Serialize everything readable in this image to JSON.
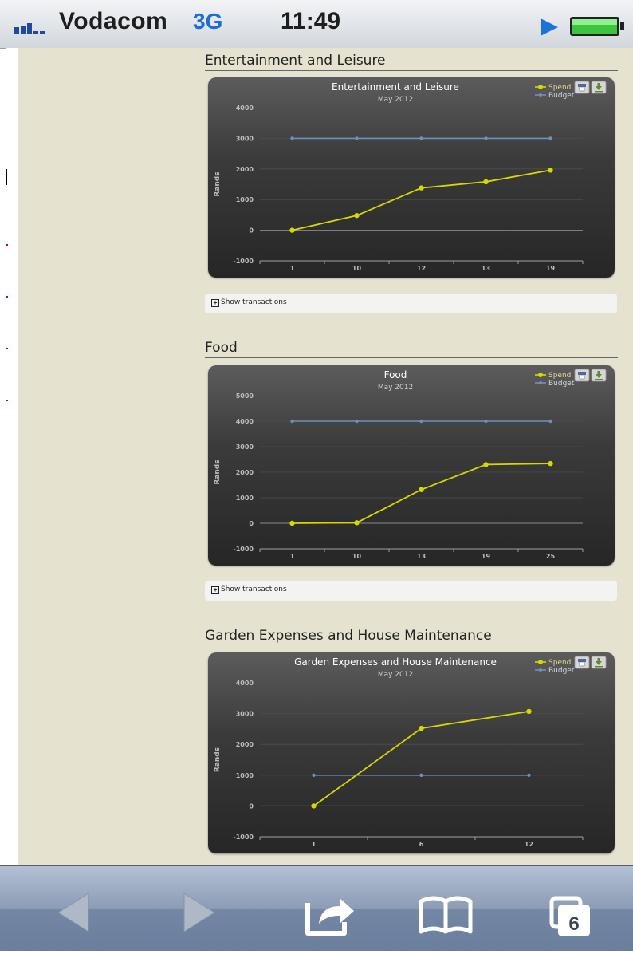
{
  "status_bar": {
    "carrier": "Vodacom",
    "network": "3G",
    "time": "11:49"
  },
  "page": {
    "sections": [
      {
        "title": "Entertainment and Leisure",
        "chart_data": {
          "type": "line",
          "title": "Entertainment and Leisure",
          "subtitle": "May 2012",
          "ylabel": "Rands",
          "categories": [
            "1",
            "10",
            "12",
            "13",
            "19"
          ],
          "yticks": [
            -1000,
            0,
            1000,
            2000,
            3000,
            4000
          ],
          "ylim": [
            -1000,
            4000
          ],
          "grid": true,
          "legend_position": "top-right",
          "series": [
            {
              "name": "Spend",
              "color": "#d8d800",
              "values": [
                0,
                480,
                1380,
                1580,
                1960
              ]
            },
            {
              "name": "Budget",
              "color": "#6f8fbf",
              "values": [
                3000,
                3000,
                3000,
                3000,
                3000
              ]
            }
          ]
        },
        "show_transactions": "Show transactions"
      },
      {
        "title": "Food",
        "chart_data": {
          "type": "line",
          "title": "Food",
          "subtitle": "May 2012",
          "ylabel": "Rands",
          "categories": [
            "1",
            "10",
            "13",
            "19",
            "25"
          ],
          "yticks": [
            -1000,
            0,
            1000,
            2000,
            3000,
            4000,
            5000
          ],
          "ylim": [
            -1000,
            5000
          ],
          "grid": true,
          "legend_position": "top-right",
          "series": [
            {
              "name": "Spend",
              "color": "#d8d800",
              "values": [
                0,
                20,
                1320,
                2300,
                2340
              ]
            },
            {
              "name": "Budget",
              "color": "#6f8fbf",
              "values": [
                4000,
                4000,
                4000,
                4000,
                4000
              ]
            }
          ]
        },
        "show_transactions": "Show transactions"
      },
      {
        "title": "Garden Expenses and House Maintenance",
        "chart_data": {
          "type": "line",
          "title": "Garden Expenses and House Maintenance",
          "subtitle": "May 2012",
          "ylabel": "Rands",
          "categories": [
            "1",
            "6",
            "12"
          ],
          "yticks": [
            -1000,
            0,
            1000,
            2000,
            3000,
            4000
          ],
          "ylim": [
            -1000,
            4000
          ],
          "grid": true,
          "legend_position": "top-right",
          "series": [
            {
              "name": "Spend",
              "color": "#d8d800",
              "values": [
                0,
                2520,
                3070
              ]
            },
            {
              "name": "Budget",
              "color": "#6f8fbf",
              "values": [
                1000,
                1000,
                1000
              ]
            }
          ]
        }
      }
    ]
  },
  "toolbar": {
    "tabs_count": "6",
    "icons": [
      "back-arrow-icon",
      "forward-arrow-icon",
      "share-icon",
      "bookmarks-icon",
      "tabs-icon"
    ]
  },
  "colors": {
    "page_background": "#e5e3cf",
    "spend_line": "#d8d800",
    "budget_line": "#6f8fbf"
  }
}
